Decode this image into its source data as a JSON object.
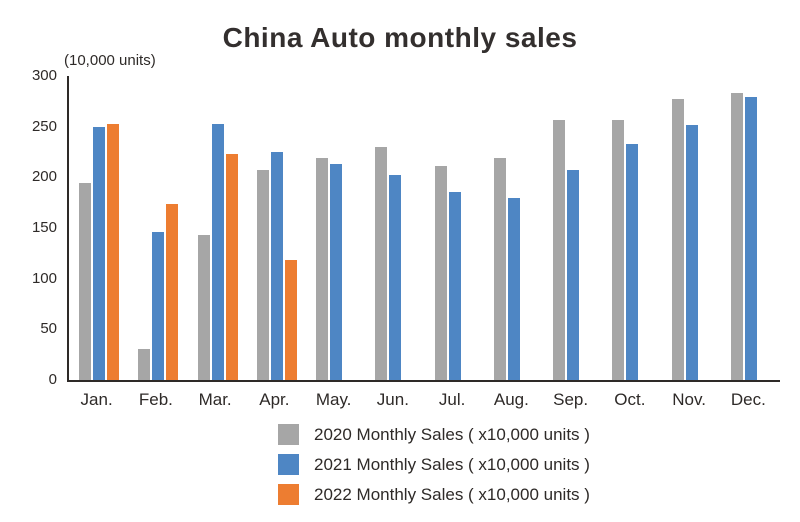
{
  "chart_data": {
    "type": "bar",
    "title": "China Auto monthly sales",
    "units_label": "(10,000 units)",
    "categories": [
      "Jan.",
      "Feb.",
      "Mar.",
      "Apr.",
      "May.",
      "Jun.",
      "Jul.",
      "Aug.",
      "Sep.",
      "Oct.",
      "Nov.",
      "Dec."
    ],
    "yticks": [
      0,
      50,
      100,
      150,
      200,
      250,
      300
    ],
    "ylim": [
      0,
      300
    ],
    "grid": false,
    "legend_position": "bottom",
    "series": [
      {
        "name": "2020 Monthly Sales ( x10,000 units )",
        "color": "#a6a6a6",
        "values": [
          194,
          31,
          143,
          207,
          219,
          230,
          211,
          219,
          257,
          257,
          277,
          283
        ]
      },
      {
        "name": "2021 Monthly Sales ( x10,000 units )",
        "color": "#4e86c4",
        "values": [
          250,
          146,
          253,
          225,
          213,
          202,
          186,
          180,
          207,
          233,
          252,
          279
        ]
      },
      {
        "name": "2022 Monthly Sales ( x10,000 units )",
        "color": "#ed7d31",
        "values": [
          253,
          174,
          223,
          118,
          null,
          null,
          null,
          null,
          null,
          null,
          null,
          null
        ]
      }
    ]
  }
}
